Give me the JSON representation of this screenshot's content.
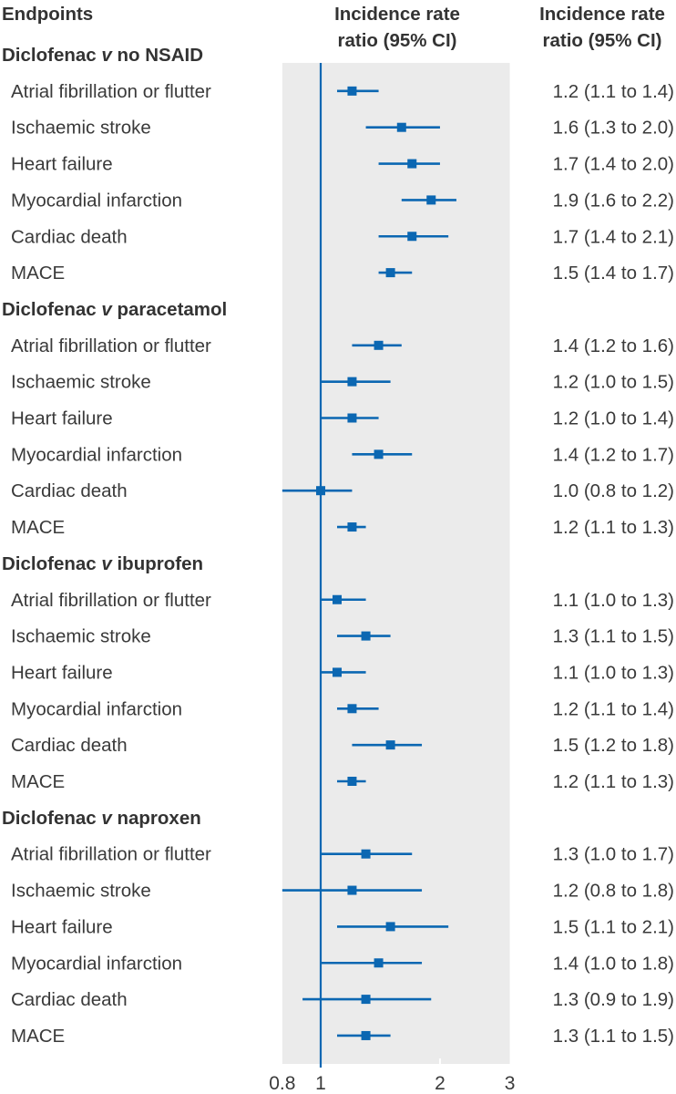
{
  "chart_data": {
    "type": "forest",
    "column_headers": {
      "endpoints": "Endpoints",
      "plot": [
        "Incidence rate",
        "ratio (95% CI)"
      ],
      "values": [
        "Incidence rate",
        "ratio (95% CI)"
      ]
    },
    "x_scale": "log",
    "xlim": [
      0.8,
      3
    ],
    "x_ticks": [
      0.8,
      1,
      2,
      3
    ],
    "x_tick_labels": [
      "0.8",
      "1",
      "2",
      "3"
    ],
    "reference_line": 1,
    "colors": {
      "marker": "#0b67b2",
      "panel": "#ebebeb",
      "text": "#3a3a3a"
    },
    "groups": [
      {
        "title_prefix": "Diclofenac ",
        "title_italic": "v",
        "title_suffix": " no NSAID",
        "rows": [
          {
            "label": "Atrial fibrillation or flutter",
            "est": 1.2,
            "lo": 1.1,
            "hi": 1.4,
            "text": "1.2 (1.1 to 1.4)"
          },
          {
            "label": "Ischaemic stroke",
            "est": 1.6,
            "lo": 1.3,
            "hi": 2.0,
            "text": "1.6 (1.3 to 2.0)"
          },
          {
            "label": "Heart failure",
            "est": 1.7,
            "lo": 1.4,
            "hi": 2.0,
            "text": "1.7 (1.4 to 2.0)"
          },
          {
            "label": "Myocardial infarction",
            "est": 1.9,
            "lo": 1.6,
            "hi": 2.2,
            "text": "1.9 (1.6 to 2.2)"
          },
          {
            "label": "Cardiac death",
            "est": 1.7,
            "lo": 1.4,
            "hi": 2.1,
            "text": "1.7 (1.4 to 2.1)"
          },
          {
            "label": "MACE",
            "est": 1.5,
            "lo": 1.4,
            "hi": 1.7,
            "text": "1.5 (1.4 to 1.7)"
          }
        ]
      },
      {
        "title_prefix": "Diclofenac ",
        "title_italic": "v",
        "title_suffix": " paracetamol",
        "rows": [
          {
            "label": "Atrial fibrillation or flutter",
            "est": 1.4,
            "lo": 1.2,
            "hi": 1.6,
            "text": "1.4 (1.2 to 1.6)"
          },
          {
            "label": "Ischaemic stroke",
            "est": 1.2,
            "lo": 1.0,
            "hi": 1.5,
            "text": "1.2 (1.0 to 1.5)"
          },
          {
            "label": "Heart failure",
            "est": 1.2,
            "lo": 1.0,
            "hi": 1.4,
            "text": "1.2 (1.0 to 1.4)"
          },
          {
            "label": "Myocardial infarction",
            "est": 1.4,
            "lo": 1.2,
            "hi": 1.7,
            "text": "1.4 (1.2 to 1.7)"
          },
          {
            "label": "Cardiac death",
            "est": 1.0,
            "lo": 0.8,
            "hi": 1.2,
            "text": "1.0 (0.8 to 1.2)"
          },
          {
            "label": "MACE",
            "est": 1.2,
            "lo": 1.1,
            "hi": 1.3,
            "text": "1.2 (1.1 to 1.3)"
          }
        ]
      },
      {
        "title_prefix": "Diclofenac ",
        "title_italic": "v",
        "title_suffix": " ibuprofen",
        "rows": [
          {
            "label": "Atrial fibrillation or flutter",
            "est": 1.1,
            "lo": 1.0,
            "hi": 1.3,
            "text": "1.1 (1.0 to 1.3)"
          },
          {
            "label": "Ischaemic stroke",
            "est": 1.3,
            "lo": 1.1,
            "hi": 1.5,
            "text": "1.3 (1.1 to 1.5)"
          },
          {
            "label": "Heart failure",
            "est": 1.1,
            "lo": 1.0,
            "hi": 1.3,
            "text": "1.1 (1.0 to 1.3)"
          },
          {
            "label": "Myocardial infarction",
            "est": 1.2,
            "lo": 1.1,
            "hi": 1.4,
            "text": "1.2 (1.1 to 1.4)"
          },
          {
            "label": "Cardiac death",
            "est": 1.5,
            "lo": 1.2,
            "hi": 1.8,
            "text": "1.5 (1.2 to 1.8)"
          },
          {
            "label": "MACE",
            "est": 1.2,
            "lo": 1.1,
            "hi": 1.3,
            "text": "1.2 (1.1 to 1.3)"
          }
        ]
      },
      {
        "title_prefix": "Diclofenac ",
        "title_italic": "v",
        "title_suffix": " naproxen",
        "rows": [
          {
            "label": "Atrial fibrillation or flutter",
            "est": 1.3,
            "lo": 1.0,
            "hi": 1.7,
            "text": "1.3 (1.0 to 1.7)"
          },
          {
            "label": "Ischaemic stroke",
            "est": 1.2,
            "lo": 0.8,
            "hi": 1.8,
            "text": "1.2 (0.8 to 1.8)"
          },
          {
            "label": "Heart failure",
            "est": 1.5,
            "lo": 1.1,
            "hi": 2.1,
            "text": "1.5 (1.1 to 2.1)"
          },
          {
            "label": "Myocardial infarction",
            "est": 1.4,
            "lo": 1.0,
            "hi": 1.8,
            "text": "1.4 (1.0 to 1.8)"
          },
          {
            "label": "Cardiac death",
            "est": 1.3,
            "lo": 0.9,
            "hi": 1.9,
            "text": "1.3 (0.9 to 1.9)"
          },
          {
            "label": "MACE",
            "est": 1.3,
            "lo": 1.1,
            "hi": 1.5,
            "text": "1.3 (1.1 to 1.5)"
          }
        ]
      }
    ]
  }
}
